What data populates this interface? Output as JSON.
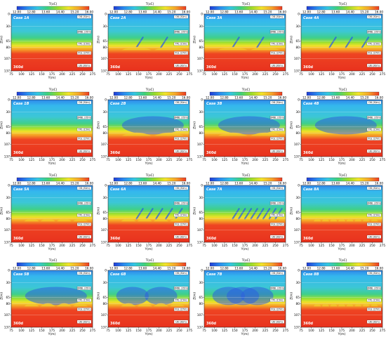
{
  "colorbar": {
    "title": "T(oC)",
    "ticks": [
      "12.00",
      "12.80",
      "13.60",
      "14.40",
      "15.20",
      "16.00"
    ],
    "colors": [
      "#1f3bd6",
      "#2a8df0",
      "#33c7e3",
      "#3fd27a",
      "#9bdc2a",
      "#f3e52a",
      "#f7a52a",
      "#ee3b22"
    ]
  },
  "axes": {
    "xlabel": "Y(m)",
    "ylabel": "Z(m)",
    "xticks": [
      "75",
      "100",
      "125",
      "150",
      "175",
      "200",
      "225",
      "250",
      "275"
    ],
    "yticks": [
      "0",
      "30",
      "65",
      "80",
      "107",
      "137"
    ]
  },
  "layers": [
    {
      "label": "OB (30m)"
    },
    {
      "label": "SMBL (35m)"
    },
    {
      "label": "TPL (15m)"
    },
    {
      "label": "FGL (27m)"
    },
    {
      "label": "UB (30m)"
    }
  ],
  "time_label": "360d",
  "panels": [
    {
      "case": "Case 1A",
      "features": {
        "diag": 0,
        "plume": 0,
        "bumps": 0
      }
    },
    {
      "case": "Case 2A",
      "features": {
        "diag": 2,
        "plume": 0,
        "bumps": 2
      }
    },
    {
      "case": "Case 3A",
      "features": {
        "diag": 2,
        "plume": 0,
        "bumps": 2
      }
    },
    {
      "case": "Case 4A",
      "features": {
        "diag": 3,
        "plume": 0,
        "bumps": 0
      }
    },
    {
      "case": "Case 1B",
      "features": {
        "diag": 0,
        "plume": 0,
        "bumps": 0
      }
    },
    {
      "case": "Case 2B",
      "features": {
        "diag": 0,
        "plume": 1,
        "bumps": 2
      }
    },
    {
      "case": "Case 3B",
      "features": {
        "diag": 0,
        "plume": 1,
        "bumps": 2
      }
    },
    {
      "case": "Case 4B",
      "features": {
        "diag": 0,
        "plume": 1,
        "bumps": 0
      }
    },
    {
      "case": "Case 5A",
      "features": {
        "diag": 0,
        "plume": 0,
        "bumps": 4
      }
    },
    {
      "case": "Case 6A",
      "features": {
        "diag": 5,
        "plume": 0,
        "bumps": 4
      }
    },
    {
      "case": "Case 7A",
      "features": {
        "diag": 8,
        "plume": 0,
        "bumps": 0
      }
    },
    {
      "case": "Case 8A",
      "features": {
        "diag": 0,
        "plume": 0,
        "bumps": 8
      }
    },
    {
      "case": "Case 5B",
      "features": {
        "diag": 0,
        "plume": 1,
        "bumps": 4
      }
    },
    {
      "case": "Case 6B",
      "features": {
        "diag": 0,
        "plume": 2,
        "bumps": 4
      }
    },
    {
      "case": "Case 7B",
      "features": {
        "diag": 0,
        "plume": 3,
        "bumps": 0
      }
    },
    {
      "case": "Case 8B",
      "features": {
        "diag": 0,
        "plume": 0,
        "bumps": 8
      }
    }
  ]
}
